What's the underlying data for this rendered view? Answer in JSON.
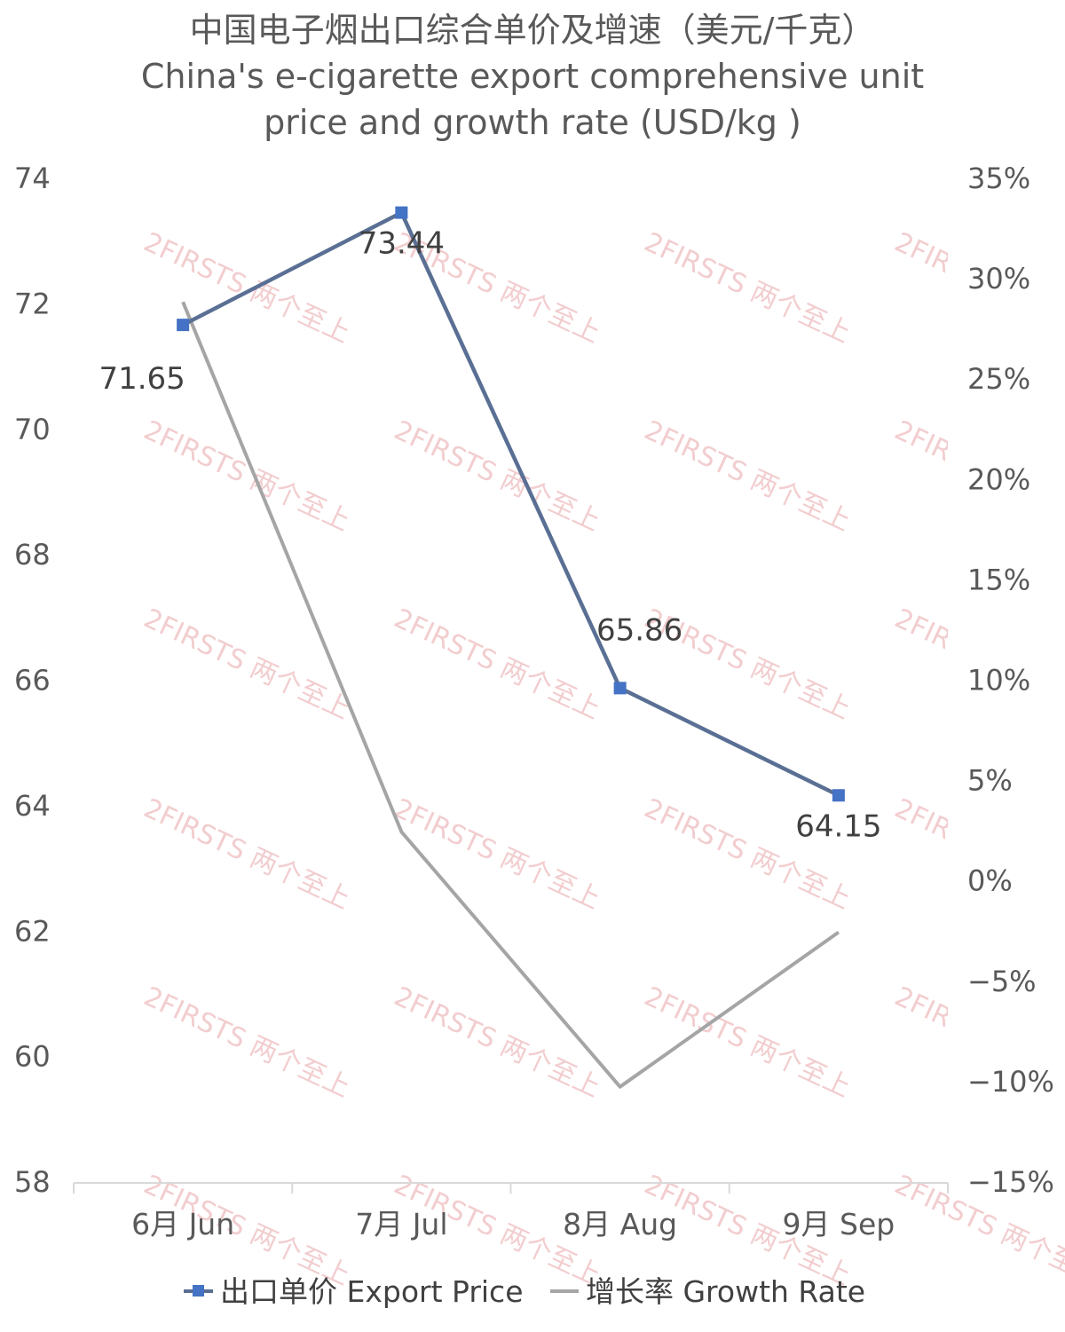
{
  "chart_data": {
    "type": "line",
    "title": [
      "中国电子烟出口综合单价及增速（美元/千克）",
      "China's e-cigarette export comprehensive unit",
      "price and growth rate (USD/kg )"
    ],
    "categories": [
      "6月 Jun",
      "7月 Jul",
      "8月 Aug",
      "9月 Sep"
    ],
    "y_left": {
      "ylim": [
        58,
        74
      ],
      "ticks": [
        58,
        60,
        62,
        64,
        66,
        68,
        70,
        72,
        74
      ]
    },
    "y_right": {
      "ylim": [
        -15,
        35
      ],
      "ticks": [
        "-15%",
        "-10%",
        "-5%",
        "0%",
        "5%",
        "10%",
        "15%",
        "20%",
        "25%",
        "30%",
        "35%"
      ]
    },
    "series": [
      {
        "name": "出口单价 Export Price",
        "axis": "left",
        "color": "#5a6f94",
        "marker_color": "#4472c4",
        "values": [
          71.65,
          73.44,
          65.86,
          64.15
        ],
        "labels": [
          "71.65",
          "73.44",
          "65.86",
          "64.15"
        ]
      },
      {
        "name": "增长率 Growth Rate",
        "axis": "right",
        "color": "#a5a5a5",
        "values": [
          28.8,
          2.4,
          -10.3,
          -2.6
        ]
      }
    ],
    "legend_position": "bottom",
    "grid": false
  },
  "watermark": "2FIRSTS 两个至上"
}
